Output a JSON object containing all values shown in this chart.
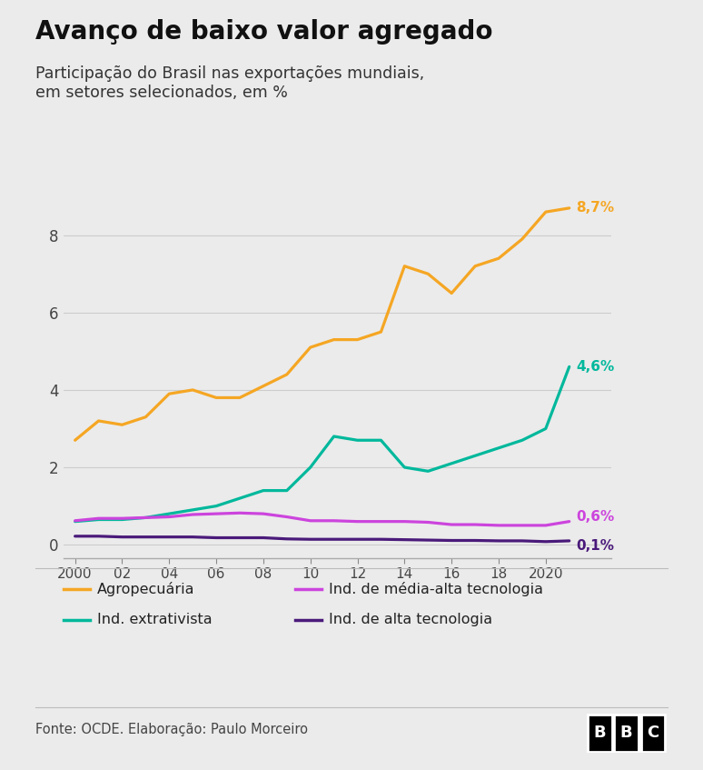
{
  "title": "Avanço de baixo valor agregado",
  "subtitle": "Participação do Brasil nas exportações mundiais,\nem setores selecionados, em %",
  "background_color": "#ebebeb",
  "years": [
    2000,
    2001,
    2002,
    2003,
    2004,
    2005,
    2006,
    2007,
    2008,
    2009,
    2010,
    2011,
    2012,
    2013,
    2014,
    2015,
    2016,
    2017,
    2018,
    2019,
    2020,
    2021
  ],
  "agropecuaria": [
    2.7,
    3.2,
    3.1,
    3.3,
    3.9,
    4.0,
    3.8,
    3.8,
    4.1,
    4.4,
    5.1,
    5.3,
    5.3,
    5.5,
    7.2,
    7.0,
    6.5,
    7.2,
    7.4,
    7.9,
    8.6,
    8.7
  ],
  "extrativista": [
    0.6,
    0.65,
    0.65,
    0.7,
    0.8,
    0.9,
    1.0,
    1.2,
    1.4,
    1.4,
    2.0,
    2.8,
    2.7,
    2.7,
    2.0,
    1.9,
    2.1,
    2.3,
    2.5,
    2.7,
    3.0,
    4.6
  ],
  "media_alta": [
    0.62,
    0.68,
    0.68,
    0.7,
    0.72,
    0.78,
    0.8,
    0.82,
    0.8,
    0.72,
    0.62,
    0.62,
    0.6,
    0.6,
    0.6,
    0.58,
    0.52,
    0.52,
    0.5,
    0.5,
    0.5,
    0.6
  ],
  "alta": [
    0.22,
    0.22,
    0.2,
    0.2,
    0.2,
    0.2,
    0.18,
    0.18,
    0.18,
    0.15,
    0.14,
    0.14,
    0.14,
    0.14,
    0.13,
    0.12,
    0.11,
    0.11,
    0.1,
    0.1,
    0.08,
    0.1
  ],
  "color_agro": "#f5a623",
  "color_extrat": "#00b89c",
  "color_media_alta": "#cc44dd",
  "color_alta": "#4a1a7a",
  "ylim": [
    -0.35,
    9.6
  ],
  "yticks": [
    0,
    2,
    4,
    6,
    8
  ],
  "xtick_labels": [
    "2000",
    "02",
    "04",
    "06",
    "08",
    "10",
    "12",
    "14",
    "16",
    "18",
    "2020"
  ],
  "xtick_positions": [
    2000,
    2002,
    2004,
    2006,
    2008,
    2010,
    2012,
    2014,
    2016,
    2018,
    2020
  ],
  "source_text": "Fonte: OCDE. Elaboração: Paulo Morceiro",
  "end_labels": {
    "agropecuaria": "8,7%",
    "extrativista": "4,6%",
    "media_alta": "0,6%",
    "alta": "0,1%"
  }
}
